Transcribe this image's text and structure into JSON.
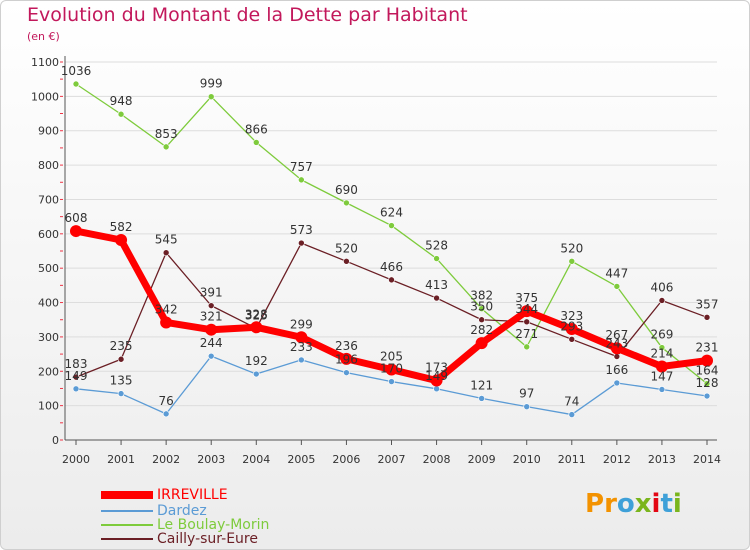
{
  "chart_data": {
    "type": "line",
    "title": "Evolution du Montant de la Dette par Habitant",
    "subtitle": "(en €)",
    "xlabel": "",
    "ylabel": "",
    "ylim": [
      0,
      1100
    ],
    "yticks": [
      0,
      100,
      200,
      300,
      400,
      500,
      600,
      700,
      800,
      900,
      1000,
      1100
    ],
    "categories": [
      "2000",
      "2001",
      "2002",
      "2003",
      "2004",
      "2005",
      "2006",
      "2007",
      "2008",
      "2009",
      "2010",
      "2011",
      "2012",
      "2013",
      "2014"
    ],
    "grid": true,
    "legend_position": "bottom-left",
    "series": [
      {
        "name": "IRREVILLE",
        "color": "#ff0000",
        "values": [
          608,
          582,
          342,
          321,
          328,
          299,
          236,
          205,
          173,
          282,
          375,
          323,
          267,
          214,
          231
        ],
        "labels": [
          "608",
          "582",
          "342",
          "321",
          "328",
          "299",
          "236",
          "205",
          "173",
          "282",
          "375",
          "323",
          "267",
          "214",
          "231"
        ]
      },
      {
        "name": "Dardez",
        "color": "#5b9bd5",
        "values": [
          149,
          135,
          76,
          244,
          192,
          233,
          196,
          170,
          149,
          121,
          97,
          74,
          166,
          147,
          128
        ],
        "labels": [
          "149",
          "135",
          "76",
          "244",
          "192",
          "233",
          "196",
          "170",
          "149",
          "121",
          "97",
          "74",
          "166",
          "147",
          "128"
        ]
      },
      {
        "name": "Le Boulay-Morin",
        "color": "#7ecb3c",
        "values": [
          1036,
          948,
          853,
          999,
          866,
          757,
          690,
          624,
          528,
          382,
          271,
          520,
          447,
          269,
          164
        ],
        "labels": [
          "1036",
          "948",
          "853",
          "999",
          "866",
          "757",
          "690",
          "624",
          "528",
          "382",
          "271",
          "520",
          "447",
          "269",
          "164"
        ]
      },
      {
        "name": "Cailly-sur-Eure",
        "color": "#6b1f25",
        "values": [
          183,
          235,
          545,
          391,
          325,
          573,
          520,
          466,
          413,
          350,
          344,
          293,
          243,
          406,
          357
        ],
        "labels": [
          "183",
          "235",
          "545",
          "391",
          "325",
          "573",
          "520",
          "466",
          "413",
          "350",
          "344",
          "293",
          "243",
          "406",
          "357"
        ]
      }
    ]
  },
  "logo": {
    "text": "Proxiti",
    "letters": [
      "P",
      "r",
      "o",
      "x",
      "i",
      "t",
      "i"
    ],
    "colors": [
      "#f39200",
      "#f39200",
      "#3ea0d8",
      "#7ab51d",
      "#e30613",
      "#3ea0d8",
      "#7ab51d"
    ]
  }
}
